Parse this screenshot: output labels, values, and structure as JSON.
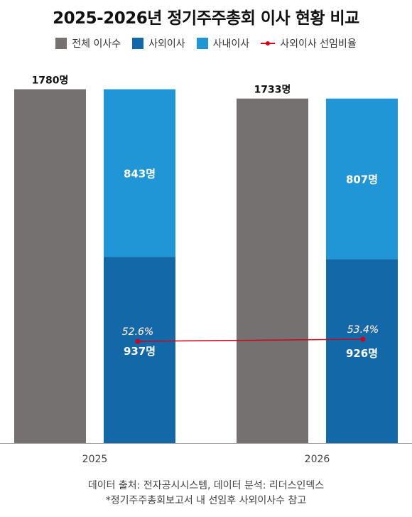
{
  "title": "2025-2026년 정기주주총회 이사 현황 비교",
  "legend": [
    {
      "label": "전체 이사수",
      "color": "#757170",
      "kind": "box"
    },
    {
      "label": "사외이사",
      "color": "#1368a8",
      "kind": "box"
    },
    {
      "label": "사내이사",
      "color": "#2196d6",
      "kind": "box"
    },
    {
      "label": "사외이사 선임비율",
      "color": "#d0021b",
      "kind": "line"
    }
  ],
  "chart_data": {
    "type": "bar",
    "categories": [
      "2025",
      "2026"
    ],
    "ylim": [
      0,
      1800
    ],
    "series": [
      {
        "name": "전체 이사수",
        "values": [
          1780,
          1733
        ],
        "labels": [
          "1780명",
          "1733명"
        ],
        "color": "#757170"
      },
      {
        "name": "사외이사",
        "values": [
          937,
          926
        ],
        "labels": [
          "937명",
          "926명"
        ],
        "color": "#1368a8",
        "stack": "split"
      },
      {
        "name": "사내이사",
        "values": [
          843,
          807
        ],
        "labels": [
          "843명",
          "807명"
        ],
        "color": "#2196d6",
        "stack": "split"
      },
      {
        "name": "사외이사 선임비율",
        "values": [
          52.6,
          53.4
        ],
        "labels": [
          "52.6%",
          "53.4%"
        ],
        "color": "#d0021b",
        "kind": "line",
        "unit": "%"
      }
    ]
  },
  "footer": {
    "source": "데이터 출처: 전자공시시스템, 데이터 분석: 리더스인덱스",
    "note": "*정기주주총회보고서 내 선임후 사외이사수 참고"
  }
}
